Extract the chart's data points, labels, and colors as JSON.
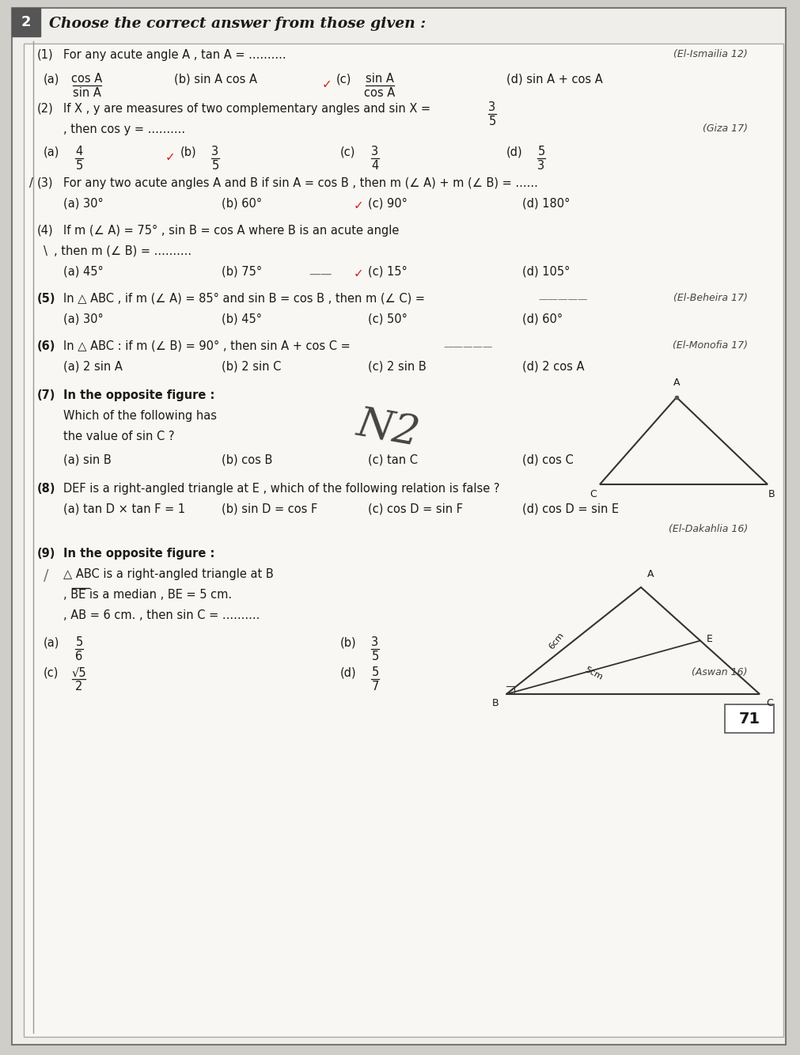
{
  "bg_color": "#d0cec8",
  "paper_color": "#f0eeea",
  "border_color": "#777777",
  "title_text": "Choose the correct answer from those given :",
  "header_box_label": "2",
  "page_num": "71",
  "line_color": "#888888",
  "text_color": "#1a1a1a",
  "check_color": "#cc2222",
  "source_color": "#444444",
  "q1_source": "(El-Ismailia 12)",
  "q2_source": "(Giza 17)",
  "q5_source": "(El-Beheira 17)",
  "q6_source": "(El-Monofia 17)",
  "q8_source": "(El-Dakahlia 16)",
  "q9_source": "(Aswan 16)"
}
